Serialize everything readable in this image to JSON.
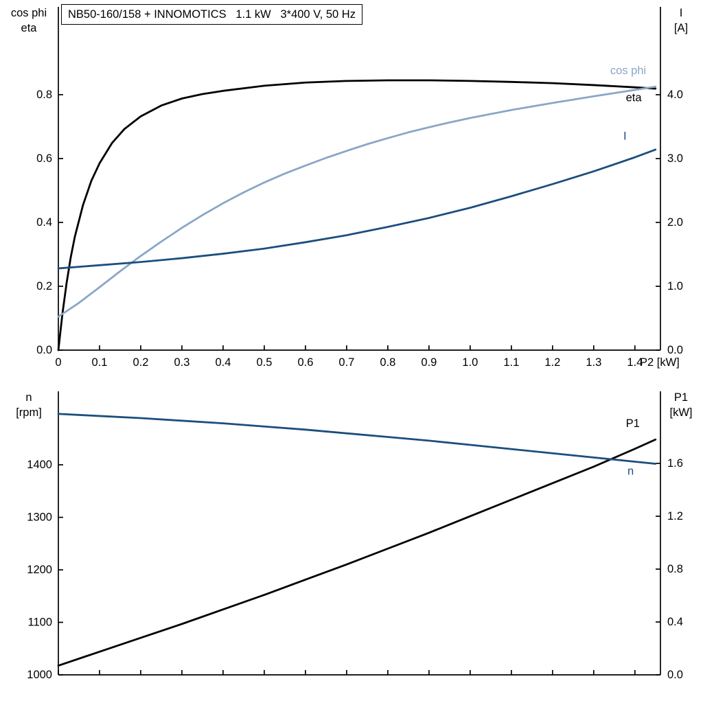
{
  "header": {
    "title": "NB50-160/158 + INNOMOTICS   1.1 kW   3*400 V, 50 Hz"
  },
  "colors": {
    "black": "#000000",
    "light_blue": "#8aa6c6",
    "dark_blue": "#1c4e7e",
    "axis": "#000000"
  },
  "chart_data": [
    {
      "id": "top",
      "type": "line",
      "x_axis": {
        "min": 0,
        "max": 1.462,
        "tick_values": [
          0,
          0.1,
          0.2,
          0.3,
          0.4,
          0.5,
          0.6,
          0.7,
          0.8,
          0.9,
          1.0,
          1.1,
          1.2,
          1.3,
          1.4
        ],
        "tick_labels": [
          "0",
          "0.1",
          "0.2",
          "0.3",
          "0.4",
          "0.5",
          "0.6",
          "0.7",
          "0.8",
          "0.9",
          "1.0",
          "1.1",
          "1.2",
          "1.3",
          "1.4"
        ],
        "label": "P2 [kW]"
      },
      "left_axis": {
        "title_lines": [
          "cos phi",
          "eta"
        ],
        "min": 0,
        "max": 1.075,
        "tick_values": [
          0,
          0.2,
          0.4,
          0.6,
          0.8
        ],
        "tick_labels": [
          "0.0",
          "0.2",
          "0.4",
          "0.6",
          "0.8"
        ]
      },
      "right_axis": {
        "title_lines": [
          "I",
          "[A]"
        ],
        "min": 0,
        "max": 5.376,
        "tick_values": [
          0,
          1,
          2,
          3,
          4
        ],
        "tick_labels": [
          "0.0",
          "1.0",
          "2.0",
          "3.0",
          "4.0"
        ]
      },
      "series": [
        {
          "name": "eta",
          "axis": "left",
          "color": "#000000",
          "width": 2.8,
          "x": [
            0,
            0.01,
            0.02,
            0.03,
            0.04,
            0.06,
            0.08,
            0.1,
            0.13,
            0.16,
            0.2,
            0.25,
            0.3,
            0.35,
            0.4,
            0.5,
            0.6,
            0.7,
            0.8,
            0.9,
            1.0,
            1.1,
            1.2,
            1.3,
            1.4,
            1.45
          ],
          "y": [
            0,
            0.115,
            0.21,
            0.29,
            0.355,
            0.455,
            0.53,
            0.585,
            0.648,
            0.692,
            0.732,
            0.766,
            0.788,
            0.802,
            0.812,
            0.828,
            0.838,
            0.843,
            0.845,
            0.845,
            0.843,
            0.84,
            0.836,
            0.83,
            0.823,
            0.819
          ],
          "label": {
            "text": "eta",
            "x": 1.378,
            "v": 0.79,
            "color": "#000000"
          }
        },
        {
          "name": "cos phi",
          "axis": "left",
          "color": "#8aa6c6",
          "width": 2.8,
          "x": [
            0,
            0.05,
            0.1,
            0.15,
            0.2,
            0.25,
            0.3,
            0.35,
            0.4,
            0.45,
            0.5,
            0.55,
            0.6,
            0.65,
            0.7,
            0.75,
            0.8,
            0.85,
            0.9,
            0.95,
            1.0,
            1.1,
            1.2,
            1.3,
            1.4,
            1.45
          ],
          "y": [
            0.105,
            0.148,
            0.197,
            0.247,
            0.295,
            0.34,
            0.383,
            0.423,
            0.46,
            0.494,
            0.525,
            0.553,
            0.578,
            0.602,
            0.624,
            0.645,
            0.664,
            0.682,
            0.698,
            0.713,
            0.727,
            0.752,
            0.774,
            0.795,
            0.815,
            0.825
          ],
          "label": {
            "text": "cos phi",
            "x": 1.34,
            "v": 0.875,
            "color": "#8aa6c6"
          }
        },
        {
          "name": "I",
          "axis": "right",
          "color": "#1c4e7e",
          "width": 2.8,
          "x": [
            0,
            0.1,
            0.2,
            0.3,
            0.4,
            0.5,
            0.6,
            0.7,
            0.8,
            0.9,
            1.0,
            1.1,
            1.2,
            1.3,
            1.4,
            1.45
          ],
          "y": [
            1.28,
            1.33,
            1.38,
            1.44,
            1.51,
            1.59,
            1.69,
            1.8,
            1.93,
            2.07,
            2.23,
            2.41,
            2.6,
            2.8,
            3.02,
            3.14
          ],
          "label": {
            "text": "I",
            "x": 1.372,
            "v": 3.35,
            "color": "#1c4e7e"
          }
        }
      ]
    },
    {
      "id": "bottom",
      "type": "line",
      "x_axis": {
        "min": 0,
        "max": 1.462,
        "tick_values": [
          0,
          0.1,
          0.2,
          0.3,
          0.4,
          0.5,
          0.6,
          0.7,
          0.8,
          0.9,
          1.0,
          1.1,
          1.2,
          1.3,
          1.4
        ]
      },
      "left_axis": {
        "title_lines": [
          "n",
          "[rpm]"
        ],
        "min": 1000,
        "max": 1540,
        "tick_values": [
          1000,
          1100,
          1200,
          1300,
          1400
        ],
        "tick_labels": [
          "1000",
          "1100",
          "1200",
          "1300",
          "1400"
        ]
      },
      "right_axis": {
        "title_lines": [
          "P1",
          "[kW]"
        ],
        "min": 0,
        "max": 2.145,
        "tick_values": [
          0,
          0.4,
          0.8,
          1.2,
          1.6
        ],
        "tick_labels": [
          "0.0",
          "0.4",
          "0.8",
          "1.2",
          "1.6"
        ]
      },
      "series": [
        {
          "name": "P1",
          "axis": "right",
          "color": "#000000",
          "width": 2.8,
          "x": [
            0,
            0.1,
            0.2,
            0.3,
            0.4,
            0.5,
            0.6,
            0.7,
            0.8,
            0.9,
            1.0,
            1.1,
            1.2,
            1.3,
            1.4,
            1.45
          ],
          "y": [
            0.07,
            0.175,
            0.28,
            0.385,
            0.495,
            0.605,
            0.72,
            0.835,
            0.955,
            1.075,
            1.2,
            1.325,
            1.45,
            1.575,
            1.71,
            1.78
          ],
          "label": {
            "text": "P1",
            "x": 1.378,
            "v": 1.9,
            "color": "#000000"
          }
        },
        {
          "name": "n",
          "axis": "left",
          "color": "#1c4e7e",
          "width": 2.8,
          "x": [
            0,
            0.1,
            0.2,
            0.3,
            0.4,
            0.5,
            0.6,
            0.7,
            0.8,
            0.9,
            1.0,
            1.1,
            1.2,
            1.3,
            1.4,
            1.45
          ],
          "y": [
            1497,
            1493,
            1489,
            1484,
            1479,
            1473,
            1467,
            1460,
            1453,
            1446,
            1438,
            1430,
            1422,
            1414,
            1406,
            1402
          ],
          "label": {
            "text": "n",
            "x": 1.382,
            "v": 1388,
            "color": "#1c4e7e"
          }
        }
      ]
    }
  ]
}
